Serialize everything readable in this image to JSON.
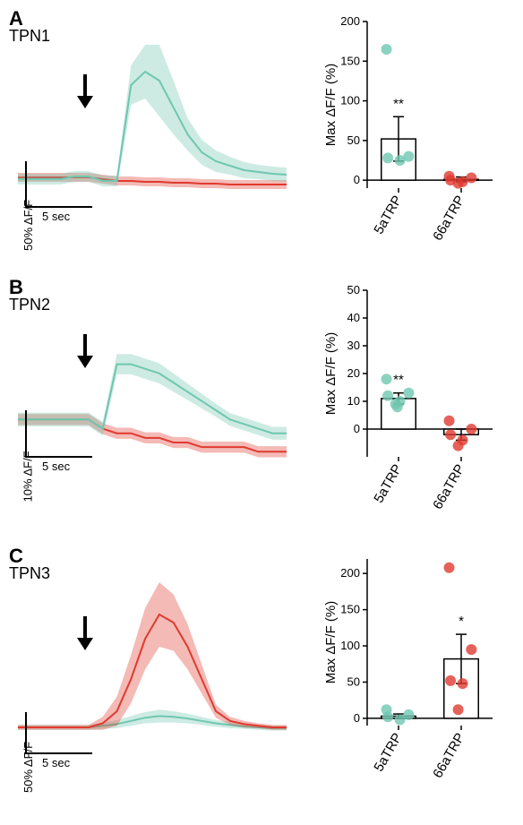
{
  "colors": {
    "teal": "#6fc7b0",
    "red": "#e03a2f",
    "black": "#000000",
    "white": "#ffffff"
  },
  "panels": {
    "A": {
      "letter": "A",
      "title": "TPN1",
      "trace": {
        "type": "line-with-band",
        "duration_s": 20,
        "arrow_time_s": 4.5,
        "scalebar": {
          "y_label": "50% ΔF/F",
          "y_percent": 50,
          "x_label": "5 sec",
          "x_seconds": 5
        },
        "ylim_percent": [
          -30,
          150
        ],
        "series": [
          {
            "name": "5aTRP",
            "color": "#6fc7b0",
            "mean": [
              0,
              0,
              0,
              0,
              3,
              3,
              -2,
              -2,
              105,
              120,
              110,
              80,
              50,
              30,
              20,
              15,
              10,
              8,
              6,
              5
            ],
            "sem": [
              6,
              6,
              6,
              6,
              6,
              6,
              6,
              6,
              22,
              30,
              40,
              30,
              18,
              14,
              12,
              10,
              9,
              8,
              8,
              8
            ]
          },
          {
            "name": "66aTRP",
            "color": "#e03a2f",
            "mean": [
              2,
              2,
              2,
              2,
              2,
              2,
              0,
              -2,
              -2,
              -3,
              -3,
              -4,
              -4,
              -5,
              -5,
              -6,
              -6,
              -6,
              -6,
              -6
            ],
            "sem": [
              5,
              5,
              5,
              5,
              5,
              5,
              5,
              5,
              5,
              5,
              5,
              5,
              5,
              5,
              5,
              5,
              5,
              5,
              5,
              5
            ]
          }
        ]
      },
      "bar": {
        "type": "bar-with-points",
        "ylabel": "Max ΔF/F (%)",
        "ylim": [
          -10,
          200
        ],
        "ytick_step": 50,
        "categories": [
          "5aTRP",
          "66aTRP"
        ],
        "category_colors": [
          "#6fc7b0",
          "#e03a2f"
        ],
        "means": [
          52,
          1
        ],
        "sems": [
          28,
          3
        ],
        "points": [
          [
            165,
            30,
            28,
            25
          ],
          [
            5,
            3,
            0,
            -2,
            -4
          ]
        ],
        "sig": {
          "text": "**",
          "over": 0
        }
      }
    },
    "B": {
      "letter": "B",
      "title": "TPN2",
      "trace": {
        "type": "line-with-band",
        "duration_s": 20,
        "arrow_time_s": 4.5,
        "scalebar": {
          "y_label": "10% ΔF/F",
          "y_percent": 10,
          "x_label": "5 sec",
          "x_seconds": 5
        },
        "ylim_percent": [
          -10,
          25
        ],
        "series": [
          {
            "name": "5aTRP",
            "color": "#6fc7b0",
            "mean": [
              2,
              2,
              2,
              2,
              2,
              2,
              0,
              14,
              14,
              13,
              12,
              10,
              8,
              6,
              4,
              2,
              1,
              0,
              -1,
              -1
            ],
            "sem": [
              1.5,
              1.5,
              1.5,
              1.5,
              1.5,
              1.5,
              1.5,
              2.2,
              2.2,
              2.2,
              2.2,
              2.0,
              1.8,
              1.6,
              1.4,
              1.4,
              1.4,
              1.4,
              1.4,
              1.4
            ]
          },
          {
            "name": "66aTRP",
            "color": "#e03a2f",
            "mean": [
              2,
              2,
              2,
              2,
              2,
              2,
              0,
              -1,
              -1,
              -2,
              -2,
              -3,
              -3,
              -4,
              -4,
              -4,
              -4,
              -5,
              -5,
              -5
            ],
            "sem": [
              1.2,
              1.2,
              1.2,
              1.2,
              1.2,
              1.2,
              1.2,
              1.2,
              1.2,
              1.2,
              1.2,
              1.2,
              1.2,
              1.2,
              1.2,
              1.2,
              1.2,
              1.2,
              1.2,
              1.2
            ]
          }
        ]
      },
      "bar": {
        "type": "bar-with-points",
        "ylabel": "Max ΔF/F (%)",
        "ylim": [
          -10,
          50
        ],
        "ytick_step": 10,
        "categories": [
          "5aTRP",
          "66aTRP"
        ],
        "category_colors": [
          "#6fc7b0",
          "#e03a2f"
        ],
        "means": [
          11,
          -2
        ],
        "sems": [
          2,
          2
        ],
        "points": [
          [
            18,
            13,
            12,
            10,
            9,
            8
          ],
          [
            3,
            0,
            -2,
            -4,
            -6
          ]
        ],
        "sig": {
          "text": "**",
          "over": 0
        }
      }
    },
    "C": {
      "letter": "C",
      "title": "TPN3",
      "trace": {
        "type": "line-with-band",
        "duration_s": 20,
        "arrow_time_s": 4.5,
        "scalebar": {
          "y_label": "50% ΔF/F",
          "y_percent": 50,
          "x_label": "5 sec",
          "x_seconds": 5
        },
        "ylim_percent": [
          -20,
          180
        ],
        "series": [
          {
            "name": "5aTRP",
            "color": "#6fc7b0",
            "mean": [
              0,
              0,
              0,
              0,
              0,
              0,
              2,
              4,
              8,
              12,
              14,
              13,
              11,
              8,
              5,
              3,
              1,
              0,
              -1,
              -1
            ],
            "sem": [
              3,
              3,
              3,
              3,
              3,
              3,
              4,
              5,
              6,
              7,
              8,
              7,
              6,
              5,
              4,
              4,
              3,
              3,
              3,
              3
            ]
          },
          {
            "name": "66aTRP",
            "color": "#e03a2f",
            "mean": [
              0,
              0,
              0,
              0,
              0,
              0,
              5,
              20,
              60,
              110,
              140,
              130,
              100,
              60,
              20,
              8,
              4,
              2,
              0,
              0
            ],
            "sem": [
              3,
              3,
              3,
              3,
              3,
              3,
              8,
              18,
              30,
              38,
              40,
              35,
              28,
              18,
              8,
              5,
              4,
              3,
              3,
              3
            ]
          }
        ]
      },
      "bar": {
        "type": "bar-with-points",
        "ylabel": "Max ΔF/F (%)",
        "ylim": [
          -10,
          220
        ],
        "ytick_step": 50,
        "categories": [
          "5aTRP",
          "66aTRP"
        ],
        "category_colors": [
          "#6fc7b0",
          "#e03a2f"
        ],
        "means": [
          3,
          82
        ],
        "sems": [
          3,
          34
        ],
        "points": [
          [
            12,
            5,
            2,
            -2
          ],
          [
            208,
            95,
            52,
            48,
            12
          ]
        ],
        "sig": {
          "text": "*",
          "over": 1
        }
      }
    }
  }
}
